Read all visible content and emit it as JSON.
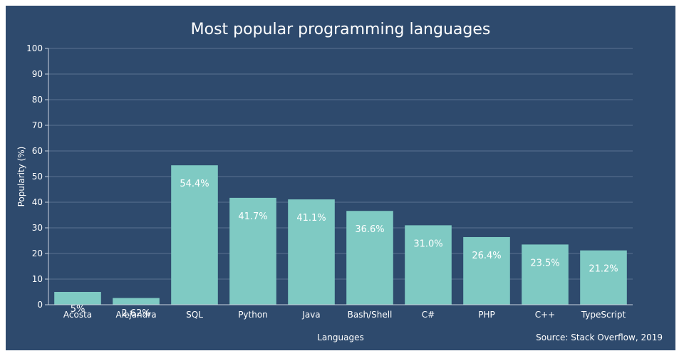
{
  "colors": {
    "background": "#2e4a6d",
    "bar": "#7fcac3",
    "text": "#ffffff",
    "grid": "#5b7391"
  },
  "chart_data": {
    "type": "bar",
    "title": "Most popular programming languages",
    "xlabel": "Languages",
    "ylabel": "Popularity (%)",
    "source": "Source: Stack Overflow, 2019",
    "ylim": [
      0,
      100
    ],
    "yticks": [
      0,
      10,
      20,
      30,
      40,
      50,
      60,
      70,
      80,
      90,
      100
    ],
    "grid": true,
    "categories": [
      "Acosta",
      "Alejandra",
      "SQL",
      "Python",
      "Java",
      "Bash/Shell",
      "C#",
      "PHP",
      "C++",
      "TypeScript"
    ],
    "values": [
      5,
      2.62,
      54.4,
      41.7,
      41.1,
      36.6,
      31.0,
      26.4,
      23.5,
      21.2
    ],
    "value_labels": [
      "5%",
      "2.62%",
      "54.4%",
      "41.7%",
      "41.1%",
      "36.6%",
      "31.0%",
      "26.4%",
      "23.5%",
      "21.2%"
    ]
  }
}
